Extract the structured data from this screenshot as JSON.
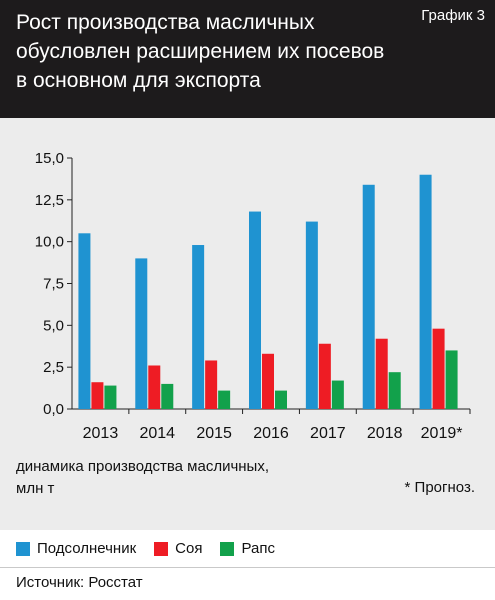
{
  "header": {
    "title_lines": [
      "Рост производства масличных",
      "обусловлен расширением их посевов",
      "в основном для экспорта"
    ],
    "tag": "График 3"
  },
  "note": {
    "lines": [
      "динамика производства масличных,",
      "млн т"
    ]
  },
  "footnote": "* Прогноз.",
  "source": "Источник: Росстат",
  "chart_data": {
    "type": "bar",
    "categories": [
      "2013",
      "2014",
      "2015",
      "2016",
      "2017",
      "2018",
      "2019*"
    ],
    "series": [
      {
        "name": "Подсолнечник",
        "color": "#1f93d1",
        "values": [
          10.5,
          9.0,
          9.8,
          11.8,
          11.2,
          13.4,
          14.0
        ]
      },
      {
        "name": "Соя",
        "color": "#ee1c24",
        "values": [
          1.6,
          2.6,
          2.9,
          3.3,
          3.9,
          4.2,
          4.8
        ]
      },
      {
        "name": "Рапс",
        "color": "#12a14b",
        "values": [
          1.4,
          1.5,
          1.1,
          1.1,
          1.7,
          2.2,
          3.5
        ]
      }
    ],
    "y_ticks": [
      "0,0",
      "2,5",
      "5,0",
      "7,5",
      "10,0",
      "12,5",
      "15,0"
    ],
    "ylim": [
      0,
      15
    ],
    "grid": false,
    "legend_position": "bottom"
  }
}
